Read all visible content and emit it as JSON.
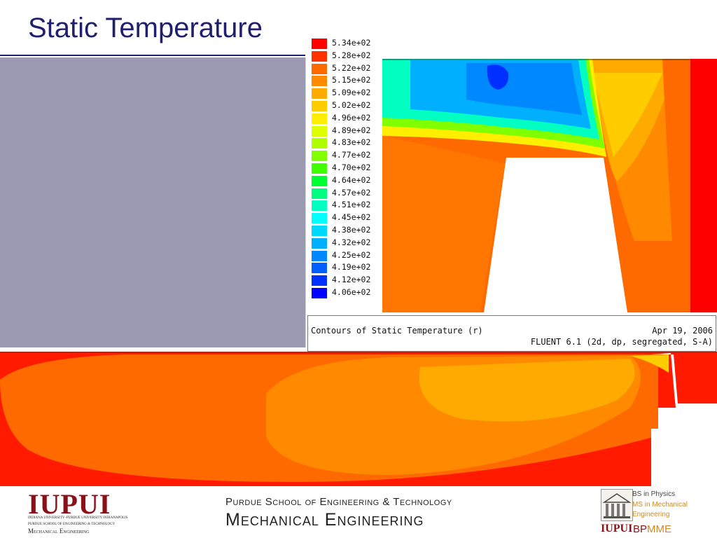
{
  "slide": {
    "title": "Static Temperature"
  },
  "legend": {
    "entries": [
      {
        "label": "5.34e+02",
        "color": "#ff0000"
      },
      {
        "label": "5.28e+02",
        "color": "#ff3300"
      },
      {
        "label": "5.22e+02",
        "color": "#ff6a00"
      },
      {
        "label": "5.15e+02",
        "color": "#ff8a00"
      },
      {
        "label": "5.09e+02",
        "color": "#ffaa00"
      },
      {
        "label": "5.02e+02",
        "color": "#ffcc00"
      },
      {
        "label": "4.96e+02",
        "color": "#ffee00"
      },
      {
        "label": "4.89e+02",
        "color": "#ddff00"
      },
      {
        "label": "4.83e+02",
        "color": "#b0ff00"
      },
      {
        "label": "4.77e+02",
        "color": "#80ff00"
      },
      {
        "label": "4.70e+02",
        "color": "#40ff00"
      },
      {
        "label": "4.64e+02",
        "color": "#00ff30"
      },
      {
        "label": "4.57e+02",
        "color": "#00ff80"
      },
      {
        "label": "4.51e+02",
        "color": "#00ffc0"
      },
      {
        "label": "4.45e+02",
        "color": "#00ffff"
      },
      {
        "label": "4.38e+02",
        "color": "#00d8ff"
      },
      {
        "label": "4.32e+02",
        "color": "#00b0ff"
      },
      {
        "label": "4.25e+02",
        "color": "#0088ff"
      },
      {
        "label": "4.19e+02",
        "color": "#0060ff"
      },
      {
        "label": "4.12e+02",
        "color": "#0030ff"
      },
      {
        "label": "4.06e+02",
        "color": "#0000ff"
      }
    ]
  },
  "caption": {
    "left": "Contours of Static Temperature (r)",
    "date": "Apr 19, 2006",
    "version": "FLUENT 6.1 (2d, dp, segregated, S-A)"
  },
  "footer": {
    "iupui_logo": "IUPUI",
    "iupui_sub1": "INDIANA UNIVERSITY–PURDUE UNIVERSITY INDIANAPOLIS",
    "iupui_sub2": "PURDUE SCHOOL OF ENGINEERING & TECHNOLOGY",
    "iupui_sub3": "Mechanical Engineering",
    "school_line1": "Purdue School of Engineering & Technology",
    "school_line2": "Mechanical Engineering",
    "bpmme_lines": [
      "BS in Physics",
      "MS in Mechanical",
      "Engineering"
    ],
    "bpmme_iupui": "IUPUI",
    "bpmme_text_bp": "BP",
    "bpmme_text_mme": "MME"
  },
  "colors": {
    "title": "#1f1f6e",
    "iupui_red": "#8b0f16",
    "panel_gray": "#9a9ab2"
  }
}
